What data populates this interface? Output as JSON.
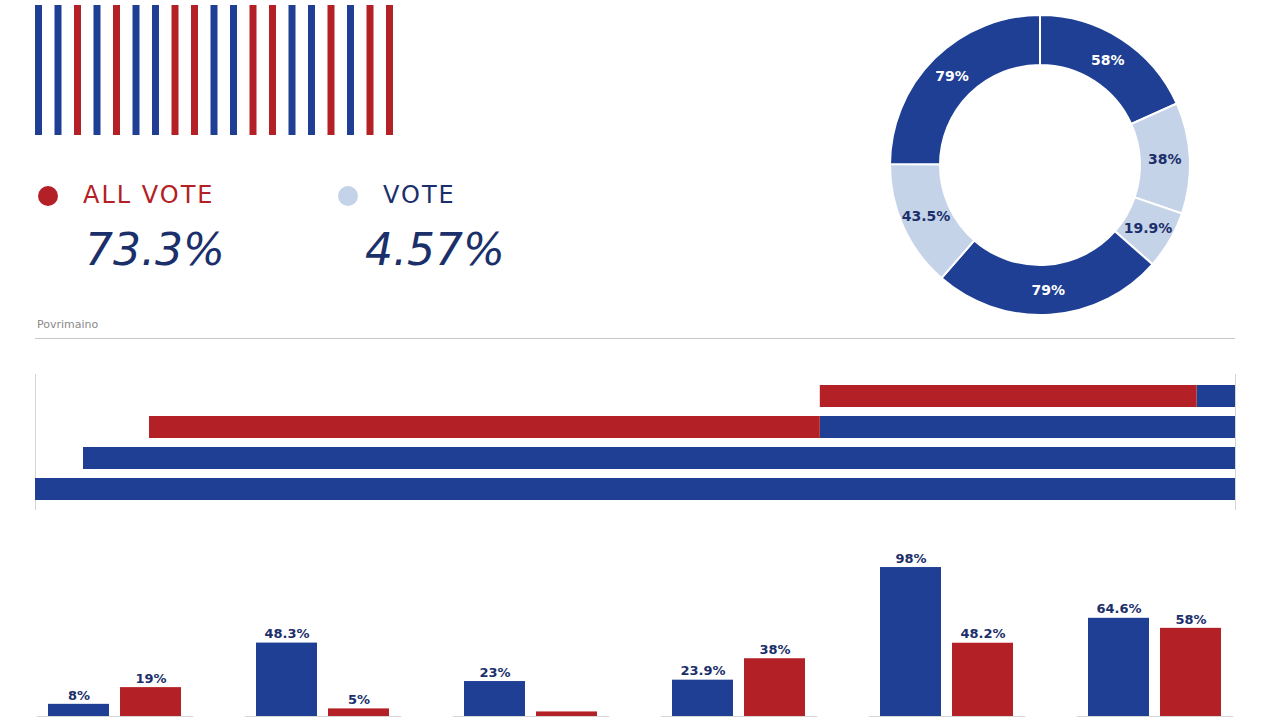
{
  "stats": [
    {
      "label": "ALL VOTE",
      "value": "73.3%",
      "color": "#b32025"
    },
    {
      "label": "VOTE",
      "value": "4.57%",
      "color": "#c5d3e8"
    }
  ],
  "chart_data": [
    {
      "type": "donut",
      "values": [
        58,
        38,
        19.9,
        79,
        43.5,
        79
      ],
      "value_labels": [
        "58%",
        "38%",
        "19.9%",
        "79%",
        "43.5%",
        "79%"
      ],
      "colors": [
        "#1f3f95",
        "#c5d3e8",
        "#c5d3e8",
        "#1f3f95",
        "#c5d3e8",
        "#1f3f95"
      ],
      "data_labels": true
    },
    {
      "type": "bar",
      "orientation": "horizontal",
      "stacked": true,
      "title": "Povrimaino",
      "categories": [
        null,
        null,
        null,
        null
      ],
      "series": [
        {
          "color": "#1f3f95",
          "values": [
            3.2,
            34.6,
            96,
            100
          ]
        },
        {
          "color": "#b32025",
          "values": [
            31.4,
            55.9,
            0,
            0
          ]
        }
      ],
      "xlim": [
        100,
        0
      ],
      "tick_labels": false
    },
    {
      "type": "bar",
      "categories": [
        null,
        null,
        null,
        null,
        null,
        null
      ],
      "series": [
        {
          "color": "#1f3f95",
          "values": [
            8,
            48.3,
            23,
            23.9,
            98,
            64.6
          ],
          "value_labels": [
            "8%",
            "48.3%",
            "23%",
            "23.9%",
            "98%",
            "64.6%"
          ]
        },
        {
          "color": "#b32025",
          "values": [
            19,
            5,
            3,
            38,
            48.2,
            58
          ],
          "value_labels": [
            "19%",
            "5%",
            null,
            "38%",
            "48.2%",
            "58%"
          ]
        }
      ],
      "ylim": [
        0,
        100
      ],
      "data_labels": true,
      "tick_labels": false
    }
  ]
}
